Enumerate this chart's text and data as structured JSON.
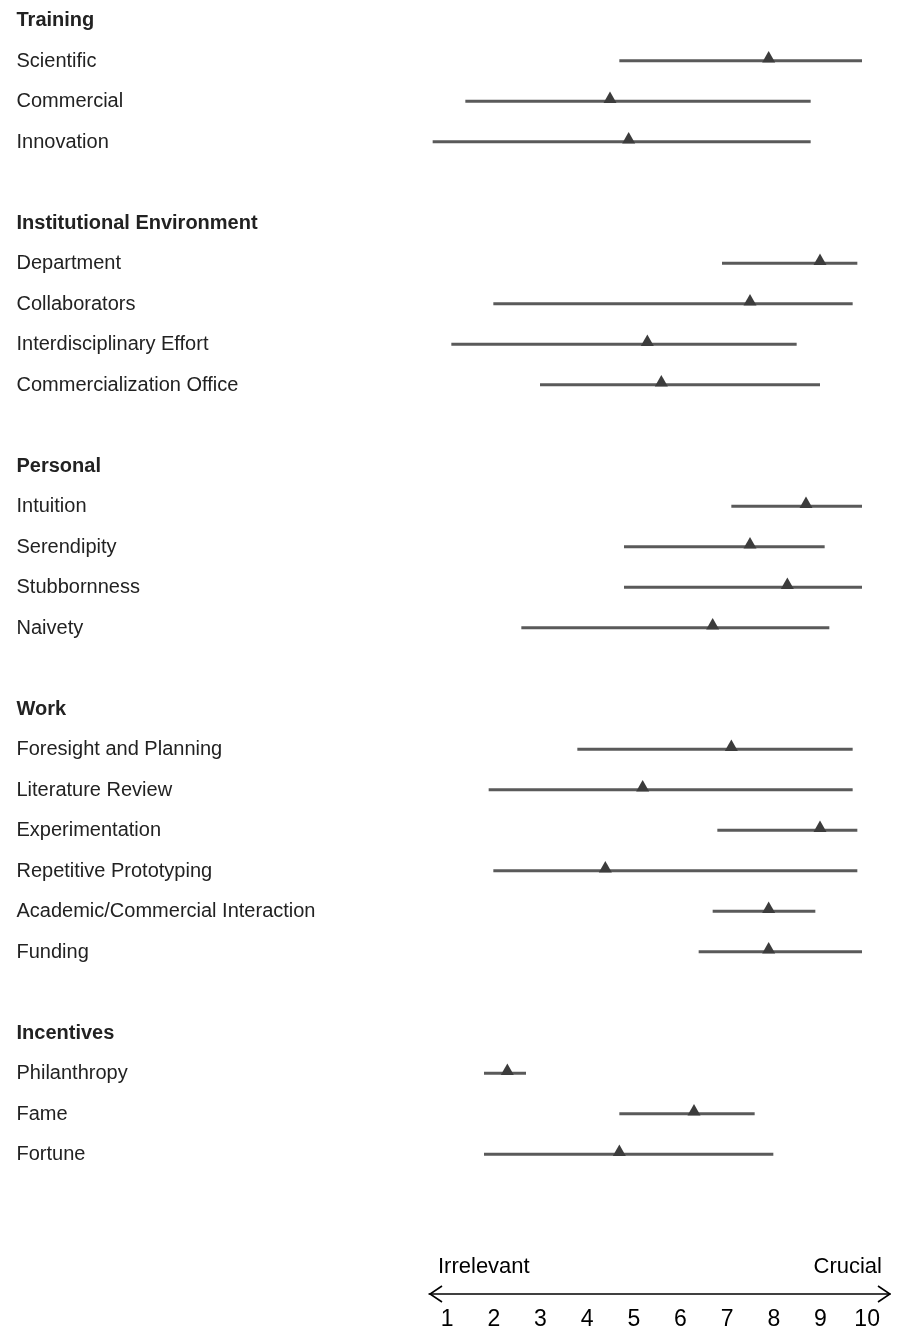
{
  "chart_data": {
    "type": "bar",
    "orientation": "horizontal",
    "marker": "triangle",
    "xlim": [
      0.6,
      10.5
    ],
    "xticks": [
      1,
      2,
      3,
      4,
      5,
      6,
      7,
      8,
      9,
      10
    ],
    "annotations": [
      "Irrelevant",
      "Crucial"
    ],
    "categories": [
      "Training",
      "Scientific",
      "Commercial",
      "Innovation",
      null,
      "Institutional Environment",
      "Department",
      "Collaborators",
      "Interdisciplinary Effort",
      "Commercialization Office",
      null,
      "Personal",
      "Intuition",
      "Serendipity",
      "Stubbornness",
      "Naivety",
      null,
      "Work",
      "Foresight and Planning",
      "Literature Review",
      "Experimentation",
      "Repetitive Prototyping",
      "Academic/Commercial Interaction",
      "Funding",
      null,
      "Incentives",
      "Philanthropy",
      "Fame",
      "Fortune"
    ],
    "series": [
      {
        "color": "#5a5a5a",
        "base": [
          null,
          4.7,
          1.4,
          0.7,
          null,
          null,
          6.9,
          2.0,
          1.1,
          3.0,
          null,
          null,
          7.1,
          4.8,
          4.8,
          2.6,
          null,
          null,
          3.8,
          1.9,
          6.8,
          2.0,
          6.7,
          6.4,
          null,
          null,
          1.8,
          4.7,
          1.8
        ],
        "values": [
          null,
          5.2,
          7.4,
          8.1,
          null,
          null,
          2.9,
          7.7,
          7.4,
          6.0,
          null,
          null,
          2.8,
          4.3,
          5.1,
          6.6,
          null,
          null,
          5.9,
          7.8,
          3.0,
          7.8,
          2.2,
          3.5,
          null,
          null,
          0.9,
          2.9,
          6.2
        ]
      },
      {
        "type": "scatter",
        "color": "#3c3c3c",
        "values": [
          null,
          7.9,
          4.5,
          4.9,
          null,
          null,
          9.0,
          7.5,
          5.3,
          5.6,
          null,
          null,
          8.7,
          7.5,
          8.3,
          6.7,
          null,
          null,
          7.1,
          5.2,
          9.0,
          4.4,
          7.9,
          7.9,
          null,
          null,
          2.3,
          6.3,
          4.7
        ]
      }
    ]
  }
}
